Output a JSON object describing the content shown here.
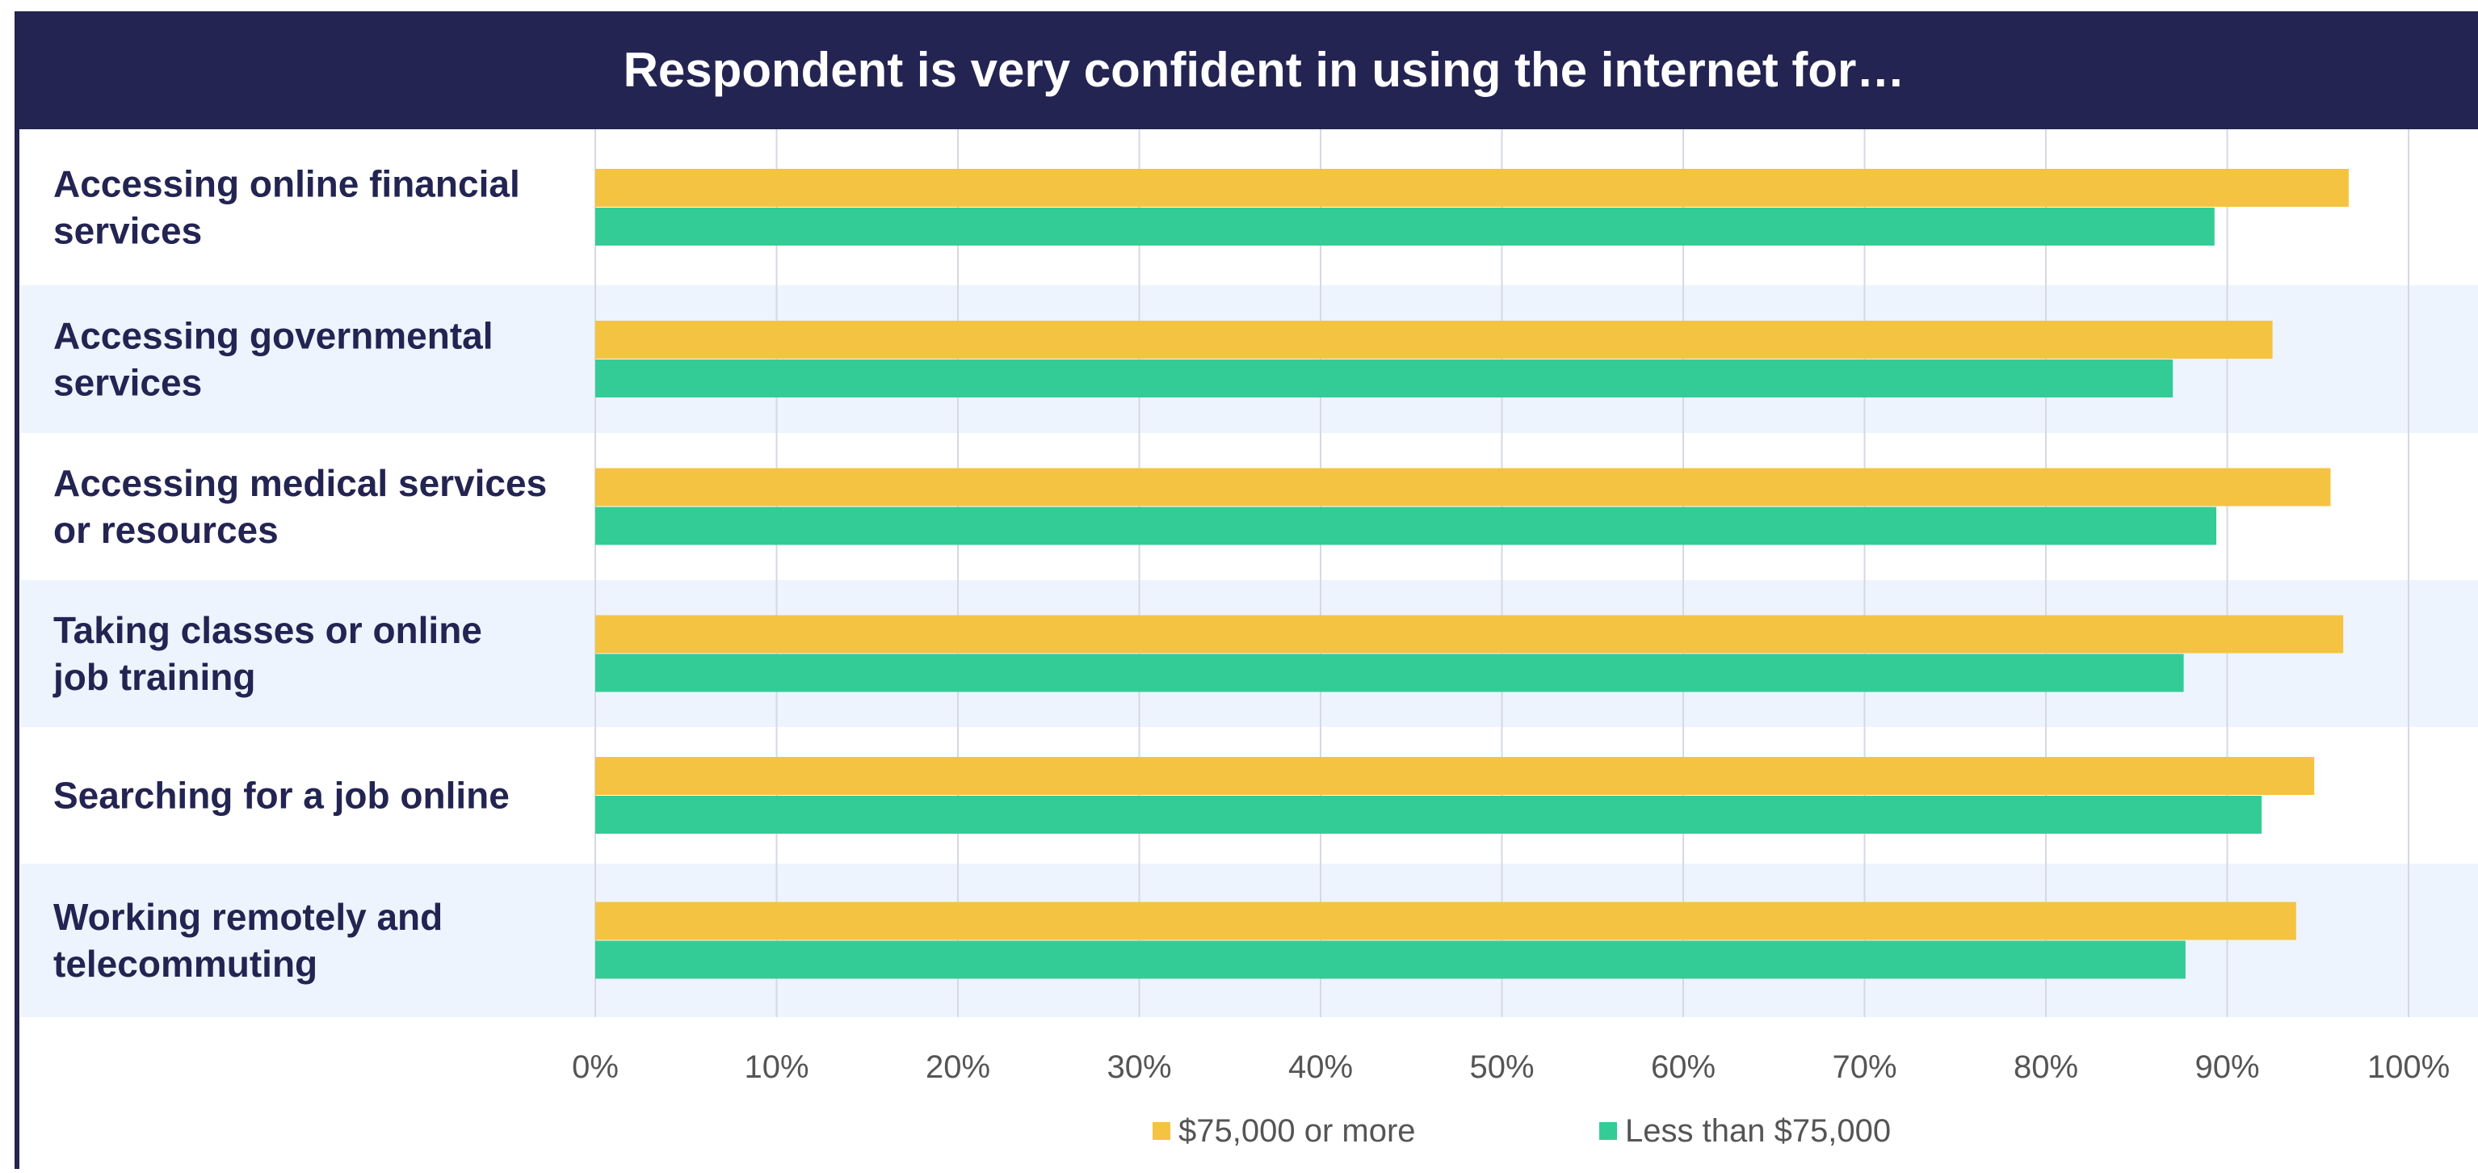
{
  "chart_data": {
    "type": "bar",
    "orientation": "horizontal",
    "title": "Respondent is very confident in using the internet for…",
    "categories": [
      [
        "Accessing online financial",
        "services"
      ],
      [
        "Accessing governmental",
        "services"
      ],
      [
        "Accessing medical services",
        "or resources"
      ],
      [
        "Taking classes or online",
        "job training"
      ],
      [
        "Searching for a job online"
      ],
      [
        "Working remotely and",
        "telecommuting"
      ]
    ],
    "series": [
      {
        "name": "$75,000 or more",
        "color": "#F5C342",
        "values": [
          96.7,
          92.5,
          95.7,
          96.4,
          94.8,
          93.8
        ]
      },
      {
        "name": "Less than $75,000",
        "color": "#34CC96",
        "values": [
          89.3,
          87.0,
          89.4,
          87.6,
          91.9,
          87.7
        ]
      }
    ],
    "xlim": [
      0,
      100
    ],
    "xticks": [
      "0%",
      "10%",
      "20%",
      "30%",
      "40%",
      "50%",
      "60%",
      "70%",
      "80%",
      "90%",
      "100%"
    ],
    "grid": true,
    "legend_position": "bottom",
    "colors": {
      "header_bg": "#232452",
      "header_text": "#FFFFFF",
      "label_text": "#232452",
      "band_alt": "#EDF4FE",
      "grid": "#D5D9E0",
      "tick_text": "#555555",
      "border": "#232452"
    }
  }
}
